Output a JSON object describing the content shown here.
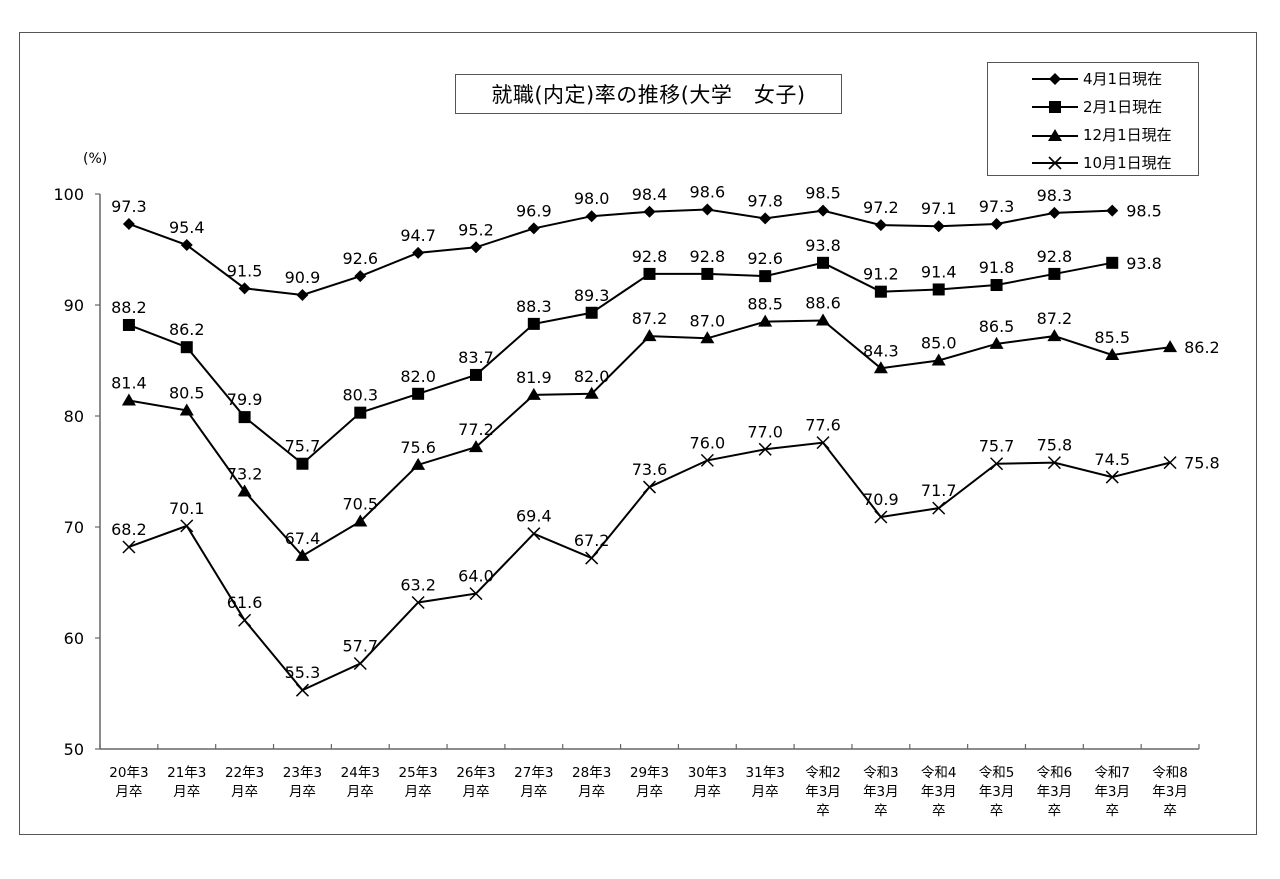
{
  "chart_data": {
    "type": "line",
    "title": "就職(内定)率の推移(大学　女子)",
    "xlabel": "",
    "ylabel": "(%)",
    "ylim": [
      50,
      100
    ],
    "yticks": [
      50,
      60,
      70,
      80,
      90,
      100
    ],
    "grid": false,
    "legend_position": "top-right",
    "categories": [
      "20年3月卒",
      "21年3月卒",
      "22年3月卒",
      "23年3月卒",
      "24年3月卒",
      "25年3月卒",
      "26年3月卒",
      "27年3月卒",
      "28年3月卒",
      "29年3月卒",
      "30年3月卒",
      "31年3月卒",
      "令和2年3月卒",
      "令和3年3月卒",
      "令和4年3月卒",
      "令和5年3月卒",
      "令和6年3月卒",
      "令和7年3月卒",
      "令和8年3月卒"
    ],
    "category_lines": [
      [
        "20年3",
        "月卒"
      ],
      [
        "21年3",
        "月卒"
      ],
      [
        "22年3",
        "月卒"
      ],
      [
        "23年3",
        "月卒"
      ],
      [
        "24年3",
        "月卒"
      ],
      [
        "25年3",
        "月卒"
      ],
      [
        "26年3",
        "月卒"
      ],
      [
        "27年3",
        "月卒"
      ],
      [
        "28年3",
        "月卒"
      ],
      [
        "29年3",
        "月卒"
      ],
      [
        "30年3",
        "月卒"
      ],
      [
        "31年3",
        "月卒"
      ],
      [
        "令和2",
        "年3月",
        "卒"
      ],
      [
        "令和3",
        "年3月",
        "卒"
      ],
      [
        "令和4",
        "年3月",
        "卒"
      ],
      [
        "令和5",
        "年3月",
        "卒"
      ],
      [
        "令和6",
        "年3月",
        "卒"
      ],
      [
        "令和7",
        "年3月",
        "卒"
      ],
      [
        "令和8",
        "年3月",
        "卒"
      ]
    ],
    "series": [
      {
        "name": "4月1日現在",
        "marker": "diamond",
        "values": [
          97.3,
          95.4,
          91.5,
          90.9,
          92.6,
          94.7,
          95.2,
          96.9,
          98.0,
          98.4,
          98.6,
          97.8,
          98.5,
          97.2,
          97.1,
          97.3,
          98.3,
          98.5,
          null
        ]
      },
      {
        "name": "2月1日現在",
        "marker": "square",
        "values": [
          88.2,
          86.2,
          79.9,
          75.7,
          80.3,
          82.0,
          83.7,
          88.3,
          89.3,
          92.8,
          92.8,
          92.6,
          93.8,
          91.2,
          91.4,
          91.8,
          92.8,
          93.8,
          null
        ]
      },
      {
        "name": "12月1日現在",
        "marker": "triangle",
        "values": [
          81.4,
          80.5,
          73.2,
          67.4,
          70.5,
          75.6,
          77.2,
          81.9,
          82.0,
          87.2,
          87.0,
          88.5,
          88.6,
          84.3,
          85.0,
          86.5,
          87.2,
          85.5,
          86.2
        ]
      },
      {
        "name": "10月1日現在",
        "marker": "x",
        "values": [
          68.2,
          70.1,
          61.6,
          55.3,
          57.7,
          63.2,
          64.0,
          69.4,
          67.2,
          73.6,
          76.0,
          77.0,
          77.6,
          70.9,
          71.7,
          75.7,
          75.8,
          74.5,
          75.8
        ]
      }
    ],
    "line_color": "#000000"
  },
  "legend": {
    "items": [
      "4月1日現在",
      "2月1日現在",
      "12月1日現在",
      "10月1日現在"
    ]
  }
}
